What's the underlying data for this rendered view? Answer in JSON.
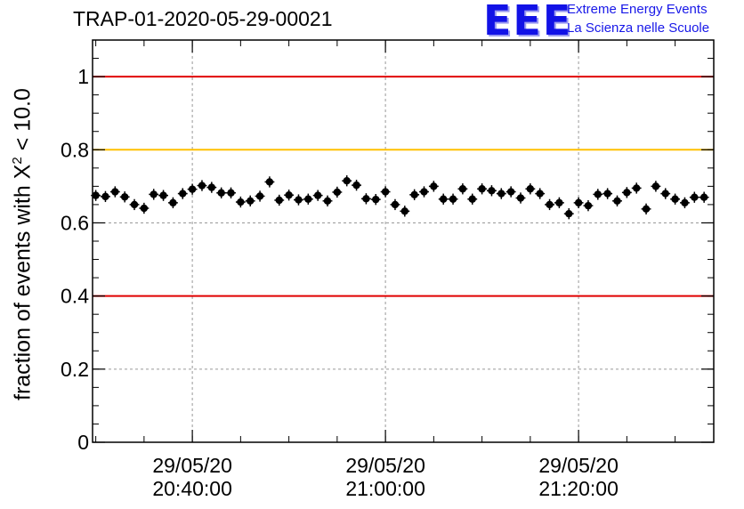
{
  "title": "TRAP-01-2020-05-29-00021",
  "logo": {
    "mark": "EEE",
    "line1": "Extreme Energy Events",
    "line2": "La Scienza nelle Scuole"
  },
  "colors": {
    "upper_threshold": "#e00000",
    "lower_threshold": "#e00000",
    "warning_threshold": "#ffc000",
    "marker": "#000000",
    "grid": "#999999"
  },
  "chart_data": {
    "type": "scatter",
    "title": "TRAP-01-2020-05-29-00021",
    "ylabel": "fraction of events with X² < 10.0",
    "ylabel_parts": {
      "prefix": "fraction of events with X",
      "superscript": "2",
      "suffix": " < 10.0"
    },
    "ylim": [
      0,
      1.1
    ],
    "xlim": [
      "2020-05-29 20:29:40",
      "2020-05-29 21:34:00"
    ],
    "grid": true,
    "y_ticks": [
      {
        "value": 0,
        "label": "0"
      },
      {
        "value": 0.2,
        "label": "0.2"
      },
      {
        "value": 0.4,
        "label": "0.4"
      },
      {
        "value": 0.6,
        "label": "0.6"
      },
      {
        "value": 0.8,
        "label": "0.8"
      },
      {
        "value": 1,
        "label": "1"
      }
    ],
    "x_ticks": [
      {
        "value": "2020-05-29 20:40:00",
        "line1": "29/05/20",
        "line2": "20:40:00"
      },
      {
        "value": "2020-05-29 21:00:00",
        "line1": "29/05/20",
        "line2": "21:00:00"
      },
      {
        "value": "2020-05-29 21:20:00",
        "line1": "29/05/20",
        "line2": "21:20:00"
      }
    ],
    "reference_lines": [
      {
        "y": 1.0,
        "color": "#e00000"
      },
      {
        "y": 0.8,
        "color": "#ffc000"
      },
      {
        "y": 0.4,
        "color": "#e00000"
      }
    ],
    "series": [
      {
        "x_start": "2020-05-29 20:30:00",
        "x_step_seconds": 60,
        "y": [
          0.675,
          0.672,
          0.685,
          0.671,
          0.65,
          0.64,
          0.678,
          0.675,
          0.655,
          0.68,
          0.692,
          0.702,
          0.697,
          0.682,
          0.682,
          0.657,
          0.66,
          0.673,
          0.712,
          0.662,
          0.676,
          0.663,
          0.665,
          0.675,
          0.66,
          0.684,
          0.715,
          0.703,
          0.666,
          0.664,
          0.685,
          0.65,
          0.632,
          0.677,
          0.685,
          0.7,
          0.665,
          0.665,
          0.693,
          0.665,
          0.693,
          0.688,
          0.68,
          0.685,
          0.668,
          0.693,
          0.68,
          0.65,
          0.655,
          0.625,
          0.655,
          0.647,
          0.678,
          0.68,
          0.66,
          0.683,
          0.695,
          0.638,
          0.7,
          0.68,
          0.665,
          0.655,
          0.67,
          0.67
        ],
        "y_error": 0.015
      }
    ]
  }
}
